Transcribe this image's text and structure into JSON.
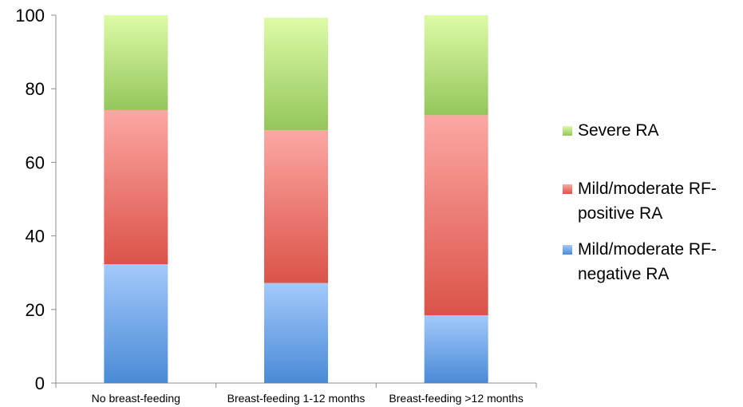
{
  "chart_data": {
    "type": "bar",
    "stacked": true,
    "percent_stacked": true,
    "categories": [
      "No breast-feeding",
      "Breast-feeding 1-12 months",
      "Breast-feeding >12 months"
    ],
    "series": [
      {
        "name": "Mild/moderate RF-negative RA",
        "values": [
          32.3,
          27.2,
          18.4
        ],
        "color_top": "#a3c9fb",
        "color_bottom": "#4a8ad6"
      },
      {
        "name": "Mild/moderate RF-positive RA",
        "values": [
          41.9,
          41.5,
          54.4
        ],
        "color_top": "#fca7a3",
        "color_bottom": "#db5348"
      },
      {
        "name": "Severe RA",
        "values": [
          25.8,
          30.6,
          27.2
        ],
        "color_top": "#ddfba6",
        "color_bottom": "#94c65c"
      }
    ],
    "legend_order": [
      "Severe RA",
      "Mild/moderate RF-positive RA",
      "Mild/moderate RF-negative RA"
    ],
    "legend_lines": [
      [
        "Severe RA"
      ],
      [
        "Mild/moderate RF-",
        "positive RA"
      ],
      [
        "Mild/moderate RF-",
        "negative RA"
      ]
    ],
    "title": "",
    "xlabel": "",
    "ylabel": "",
    "ylim": [
      0,
      100
    ],
    "yticks": [
      0,
      20,
      40,
      60,
      80,
      100
    ],
    "grid": false,
    "legend_position": "right"
  }
}
